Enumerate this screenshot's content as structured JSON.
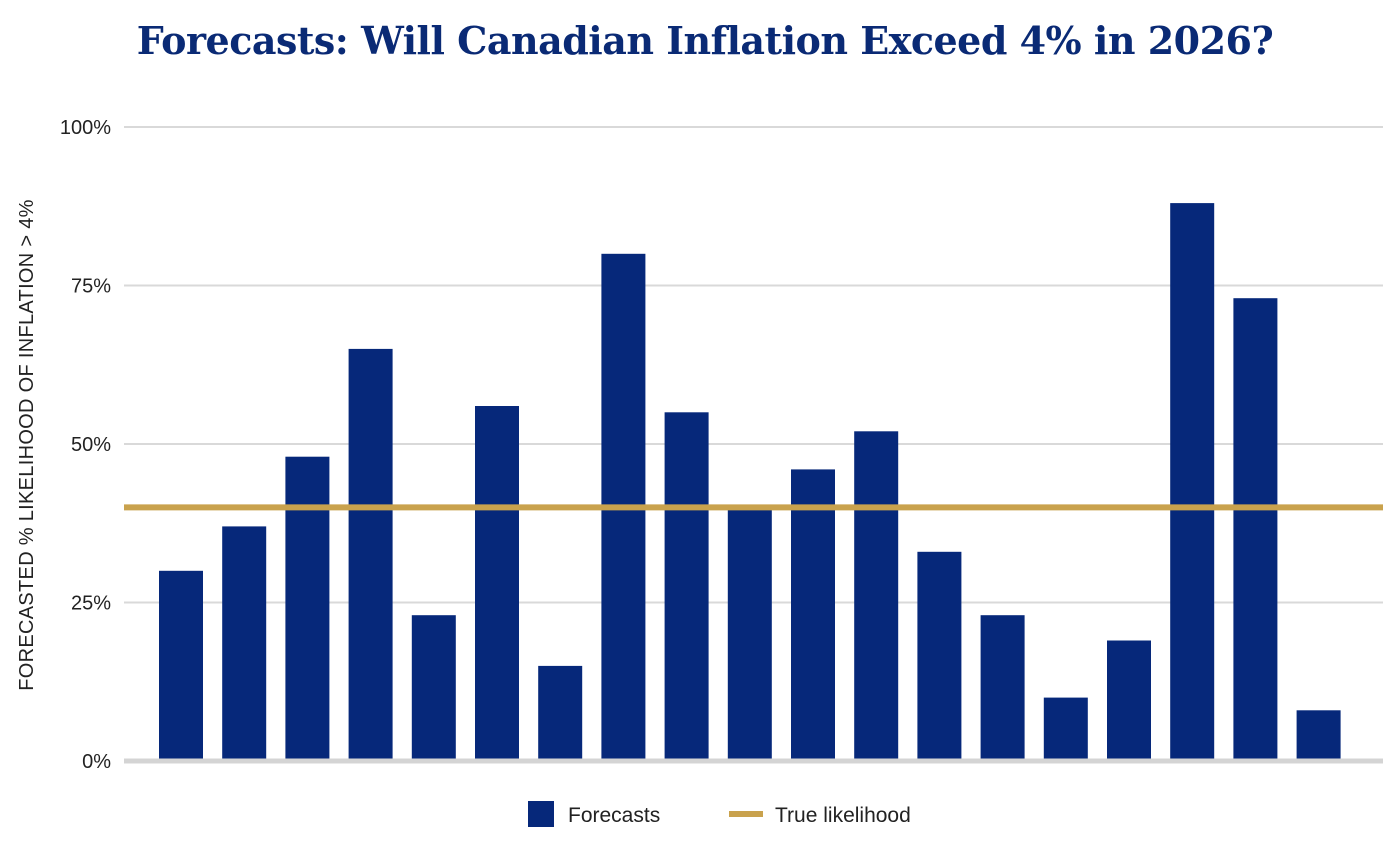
{
  "chart_data": {
    "type": "bar",
    "title": "Forecasts: Will Canadian Inflation Exceed 4% in 2026?",
    "ylabel": "FORECASTED % LIKELIHOOD OF INFLATION > 4%",
    "xlabel": "",
    "ylim": [
      0,
      100
    ],
    "yticks": [
      "0%",
      "25%",
      "50%",
      "75%",
      "100%"
    ],
    "grid": true,
    "legend_position": "bottom-center",
    "series": [
      {
        "name": "Forecasts",
        "color": "#06287a",
        "values": [
          30,
          37,
          48,
          65,
          23,
          56,
          15,
          80,
          55,
          40,
          46,
          52,
          33,
          23,
          10,
          19,
          88,
          73,
          8
        ]
      }
    ],
    "reference_line": {
      "name": "True likelihood",
      "value": 40,
      "color": "#c9a24d"
    }
  }
}
